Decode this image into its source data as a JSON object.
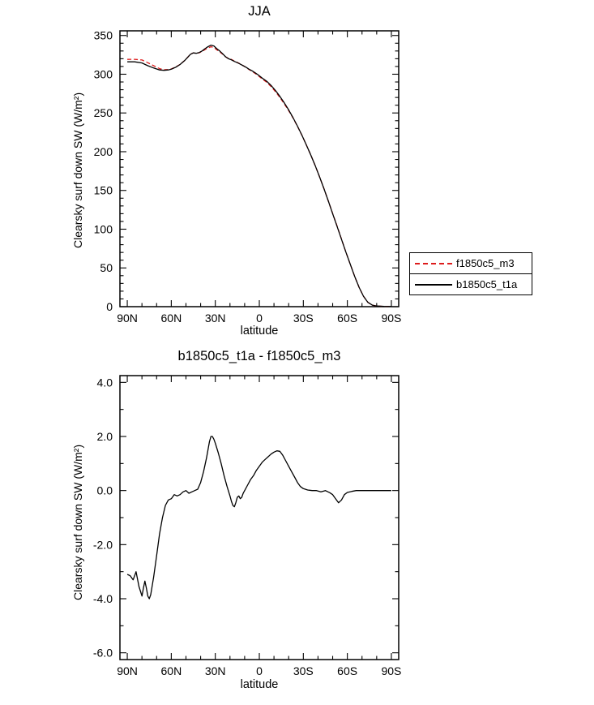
{
  "chart_data": [
    {
      "type": "line",
      "title": "JJA",
      "xlabel": "latitude",
      "ylabel": "Clearsky surf down SW (W/m²)",
      "xlim": [
        90,
        -90
      ],
      "ylim": [
        0,
        350
      ],
      "grid": false,
      "xticks": {
        "values": [
          90,
          60,
          30,
          0,
          -30,
          -60,
          -90
        ],
        "labels": [
          "90N",
          "60N",
          "30N",
          "0",
          "30S",
          "60S",
          "90S"
        ],
        "minor_step": 10,
        "minor_range": [
          90,
          -90
        ]
      },
      "yticks": {
        "values": [
          0,
          50,
          100,
          150,
          200,
          250,
          300,
          350
        ],
        "labels": [
          "0",
          "50",
          "100",
          "150",
          "200",
          "250",
          "300",
          "350"
        ],
        "minor_step": 10,
        "minor_range": [
          0,
          350
        ]
      },
      "series": [
        {
          "name": "f1850c5_m3",
          "color": "#dd1c1c",
          "dash": "5,3",
          "x": [
            90,
            85,
            80,
            76,
            72,
            68,
            65,
            62,
            60,
            57,
            54,
            51,
            49,
            47,
            45,
            43,
            41,
            39,
            37,
            35,
            33,
            31,
            29,
            27,
            25,
            23,
            21,
            19,
            17,
            15,
            13,
            11,
            9,
            7,
            5,
            3,
            1,
            -2,
            -5,
            -8,
            -11,
            -14,
            -17,
            -20,
            -23,
            -26,
            -29,
            -32,
            -35,
            -38,
            -41,
            -44,
            -47,
            -50,
            -53,
            -56,
            -59,
            -62,
            -65,
            -68,
            -71,
            -74,
            -77,
            -80,
            -85,
            -90
          ],
          "y": [
            319.1,
            319.2,
            318.4,
            314.9,
            311,
            307.2,
            305.8,
            305.9,
            306.8,
            309.3,
            312.7,
            317.6,
            321.5,
            325.6,
            327.5,
            327,
            327.7,
            329.4,
            331.8,
            333.8,
            335.5,
            334.6,
            331.5,
            328.9,
            325.9,
            322.4,
            320.3,
            319,
            317,
            315.2,
            313.3,
            311.1,
            308.8,
            306.1,
            303.9,
            301.2,
            298.5,
            293.9,
            289.7,
            284.1,
            277.6,
            270.1,
            261.8,
            253.1,
            243.5,
            232.7,
            221.4,
            209,
            196,
            182.5,
            168,
            152.5,
            136.5,
            120.2,
            104,
            87.2,
            70.5,
            54.5,
            39,
            25,
            13.5,
            5.5,
            2,
            0.8,
            0.3,
            0.2
          ]
        },
        {
          "name": "b1850c5_t1a",
          "color": "#000000",
          "dash": null,
          "x": [
            90,
            85,
            80,
            76,
            72,
            68,
            65,
            62,
            60,
            57,
            54,
            51,
            49,
            47,
            45,
            43,
            41,
            39,
            37,
            35,
            33,
            31,
            29,
            27,
            25,
            23,
            21,
            19,
            17,
            15,
            13,
            11,
            9,
            7,
            5,
            3,
            1,
            -2,
            -5,
            -8,
            -11,
            -14,
            -17,
            -20,
            -23,
            -26,
            -29,
            -32,
            -35,
            -38,
            -41,
            -44,
            -47,
            -50,
            -53,
            -56,
            -59,
            -62,
            -65,
            -68,
            -71,
            -74,
            -77,
            -80,
            -85,
            -90
          ],
          "y": [
            316,
            316,
            314.5,
            311,
            308,
            305.5,
            305,
            305.5,
            306.5,
            309,
            312.5,
            317.5,
            321.5,
            325.5,
            327.5,
            327,
            328,
            330,
            333,
            335.5,
            337.5,
            336.5,
            333,
            330,
            326.5,
            322.5,
            320,
            318.5,
            316.5,
            315,
            313,
            311,
            309,
            306.5,
            304.5,
            302,
            299.5,
            295,
            291,
            285.5,
            279,
            271.5,
            263,
            254,
            244,
            233,
            221.5,
            209,
            196,
            182.5,
            168,
            152.5,
            136.5,
            120,
            103.5,
            87,
            70.5,
            54.5,
            39,
            25,
            13.5,
            5.5,
            2,
            0.8,
            0.3,
            0.2
          ]
        }
      ]
    },
    {
      "type": "line",
      "title": "b1850c5_t1a - f1850c5_m3",
      "xlabel": "latitude",
      "ylabel": "Clearsky surf down SW (W/m²)",
      "xlim": [
        90,
        -90
      ],
      "ylim": [
        -6.0,
        4.0
      ],
      "grid": false,
      "xticks": {
        "values": [
          90,
          60,
          30,
          0,
          -30,
          -60,
          -90
        ],
        "labels": [
          "90N",
          "60N",
          "30N",
          "0",
          "30S",
          "60S",
          "90S"
        ],
        "minor_step": 10,
        "minor_range": [
          90,
          -90
        ]
      },
      "yticks": {
        "values": [
          -6,
          -4,
          -2,
          0,
          2,
          4
        ],
        "labels": [
          "-6.0",
          "-4.0",
          "-2.0",
          "0.0",
          "2.0",
          "4.0"
        ],
        "minor_step": 1,
        "minor_range": [
          -6,
          4
        ]
      },
      "series": [
        {
          "name": "b1850c5_t1a - f1850c5_m3",
          "color": "#000000",
          "dash": null,
          "x": [
            90,
            88,
            86,
            84,
            82,
            80,
            79,
            78,
            77,
            76,
            75,
            74,
            72,
            70,
            68,
            66,
            64,
            62,
            60,
            58,
            56,
            54,
            52,
            50,
            48,
            46,
            44,
            42,
            40,
            38,
            36,
            34,
            33,
            32,
            31,
            30,
            28,
            26,
            24,
            22,
            20,
            19,
            18,
            17,
            16,
            15,
            14,
            13,
            12,
            11,
            10,
            8,
            6,
            4,
            2,
            0,
            -2,
            -4,
            -6,
            -8,
            -10,
            -12,
            -14,
            -16,
            -18,
            -20,
            -22,
            -24,
            -26,
            -28,
            -30,
            -33,
            -36,
            -39,
            -42,
            -45,
            -48,
            -50,
            -52,
            -54,
            -56,
            -58,
            -60,
            -63,
            -66,
            -70,
            -75,
            -80,
            -85,
            -90
          ],
          "y": [
            -3.1,
            -3.15,
            -3.3,
            -3.0,
            -3.55,
            -3.9,
            -3.6,
            -3.35,
            -3.6,
            -3.9,
            -4.0,
            -3.85,
            -3.2,
            -2.4,
            -1.6,
            -1.0,
            -0.55,
            -0.35,
            -0.3,
            -0.15,
            -0.2,
            -0.15,
            -0.05,
            0.0,
            -0.1,
            -0.05,
            0.0,
            0.05,
            0.3,
            0.7,
            1.2,
            1.8,
            2.0,
            2.0,
            1.9,
            1.75,
            1.4,
            1.0,
            0.55,
            0.15,
            -0.2,
            -0.4,
            -0.55,
            -0.6,
            -0.45,
            -0.25,
            -0.2,
            -0.3,
            -0.25,
            -0.1,
            0.0,
            0.2,
            0.4,
            0.55,
            0.75,
            0.9,
            1.05,
            1.15,
            1.25,
            1.35,
            1.42,
            1.47,
            1.45,
            1.3,
            1.1,
            0.9,
            0.7,
            0.5,
            0.3,
            0.15,
            0.07,
            0.02,
            0.0,
            0.0,
            -0.05,
            0.0,
            -0.08,
            -0.15,
            -0.3,
            -0.45,
            -0.35,
            -0.15,
            -0.07,
            -0.03,
            0.0,
            0.0,
            0.0,
            0.0,
            0.0,
            0.0
          ]
        }
      ]
    }
  ],
  "legend": {
    "position": "right",
    "items": [
      {
        "label": "f1850c5_m3",
        "color": "#dd1c1c",
        "dash": true
      },
      {
        "label": "b1850c5_t1a",
        "color": "#000000",
        "dash": false
      }
    ]
  }
}
